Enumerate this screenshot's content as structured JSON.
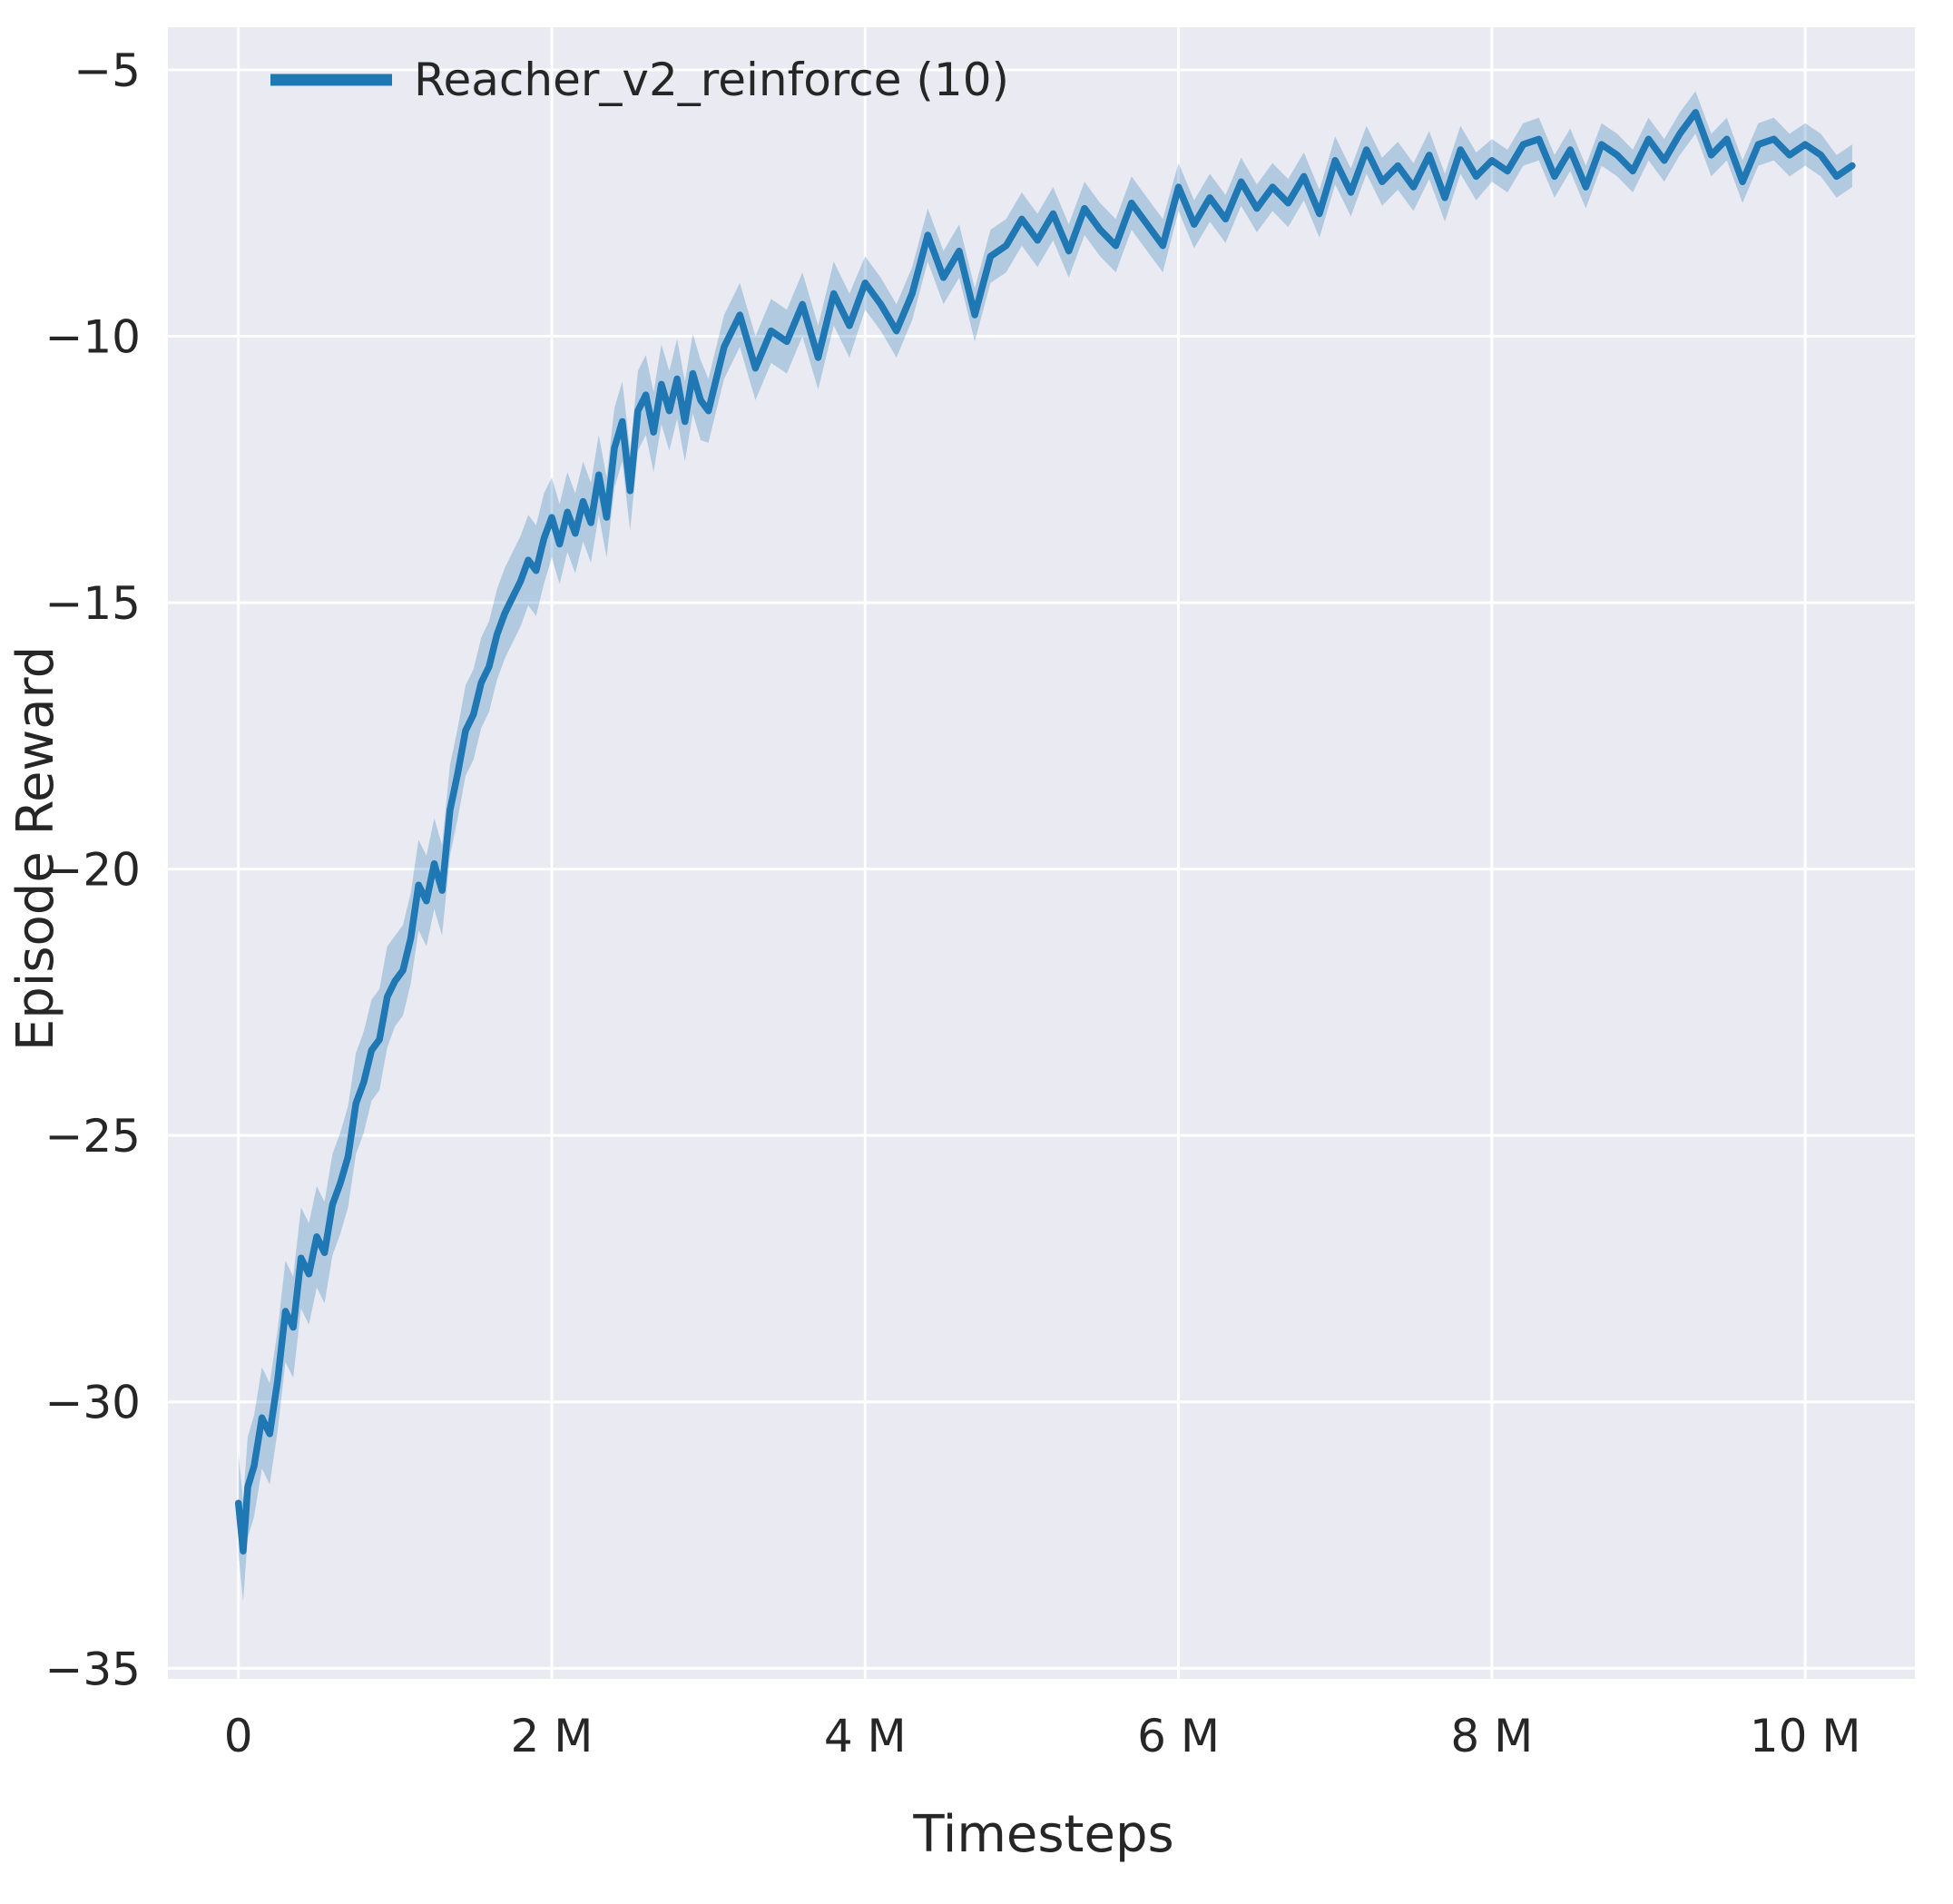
{
  "chart_data": {
    "type": "line",
    "title": "",
    "xlabel": "Timesteps",
    "ylabel": "Episode Reward",
    "xlim": [
      -0.45,
      10.7
    ],
    "ylim": [
      -35.2,
      -4.2
    ],
    "grid": true,
    "legend_position": "upper left",
    "xticks": {
      "values": [
        0,
        2,
        4,
        6,
        8,
        10
      ],
      "labels": [
        "0",
        "2 M",
        "4 M",
        "6 M",
        "8 M",
        "10 M"
      ]
    },
    "yticks": {
      "values": [
        -5,
        -10,
        -15,
        -20,
        -25,
        -30,
        -35
      ],
      "labels": [
        "−5",
        "−10",
        "−15",
        "−20",
        "−25",
        "−30",
        "−35"
      ]
    },
    "colors": {
      "line": "#1f77b4",
      "band": "#1f77b4",
      "plot_background": "#eaeaf2",
      "grid": "#ffffff",
      "text": "#262626"
    },
    "band_halfwidth_steps": [
      [
        1,
        0.95
      ],
      [
        2,
        0.85
      ],
      [
        3,
        0.75
      ],
      [
        4,
        0.6
      ],
      [
        6,
        0.5
      ],
      [
        8,
        0.45
      ],
      [
        99,
        0.4
      ]
    ],
    "series": [
      {
        "name": "Reacher_v2_reinforce (10)",
        "x": [
          0,
          0.03,
          0.06,
          0.1,
          0.15,
          0.2,
          0.25,
          0.3,
          0.35,
          0.4,
          0.45,
          0.5,
          0.55,
          0.6,
          0.65,
          0.7,
          0.75,
          0.8,
          0.85,
          0.9,
          0.95,
          1.0,
          1.05,
          1.1,
          1.15,
          1.2,
          1.25,
          1.3,
          1.35,
          1.4,
          1.45,
          1.5,
          1.55,
          1.6,
          1.65,
          1.7,
          1.75,
          1.8,
          1.85,
          1.9,
          1.95,
          2.0,
          2.05,
          2.1,
          2.15,
          2.2,
          2.25,
          2.3,
          2.35,
          2.4,
          2.45,
          2.5,
          2.55,
          2.6,
          2.65,
          2.7,
          2.75,
          2.8,
          2.85,
          2.9,
          2.95,
          3.0,
          3.1,
          3.2,
          3.3,
          3.4,
          3.5,
          3.6,
          3.7,
          3.8,
          3.9,
          4.0,
          4.1,
          4.2,
          4.3,
          4.4,
          4.5,
          4.6,
          4.7,
          4.8,
          4.9,
          5.0,
          5.1,
          5.2,
          5.3,
          5.4,
          5.5,
          5.6,
          5.7,
          5.8,
          5.9,
          6.0,
          6.1,
          6.2,
          6.3,
          6.4,
          6.5,
          6.6,
          6.7,
          6.8,
          6.9,
          7.0,
          7.1,
          7.2,
          7.3,
          7.4,
          7.5,
          7.6,
          7.7,
          7.8,
          7.9,
          8.0,
          8.1,
          8.2,
          8.3,
          8.4,
          8.5,
          8.6,
          8.7,
          8.8,
          8.9,
          9.0,
          9.1,
          9.2,
          9.3,
          9.4,
          9.5,
          9.6,
          9.7,
          9.8,
          9.9,
          10.0,
          10.1,
          10.2,
          10.3
        ],
        "y": [
          -31.9,
          -32.8,
          -31.6,
          -31.2,
          -30.3,
          -30.6,
          -29.6,
          -28.3,
          -28.6,
          -27.3,
          -27.6,
          -26.9,
          -27.2,
          -26.3,
          -25.9,
          -25.4,
          -24.4,
          -24.0,
          -23.4,
          -23.2,
          -22.4,
          -22.1,
          -21.9,
          -21.3,
          -20.3,
          -20.6,
          -19.9,
          -20.4,
          -18.9,
          -18.2,
          -17.4,
          -17.1,
          -16.5,
          -16.2,
          -15.6,
          -15.2,
          -14.9,
          -14.6,
          -14.2,
          -14.4,
          -13.8,
          -13.4,
          -13.9,
          -13.3,
          -13.7,
          -13.1,
          -13.5,
          -12.6,
          -13.4,
          -12.1,
          -11.6,
          -12.9,
          -11.4,
          -11.1,
          -11.8,
          -10.9,
          -11.4,
          -10.8,
          -11.6,
          -10.7,
          -11.2,
          -11.4,
          -10.2,
          -9.6,
          -10.6,
          -9.9,
          -10.1,
          -9.4,
          -10.4,
          -9.2,
          -9.8,
          -9.0,
          -9.4,
          -9.9,
          -9.2,
          -8.1,
          -8.9,
          -8.4,
          -9.6,
          -8.5,
          -8.3,
          -7.8,
          -8.2,
          -7.7,
          -8.4,
          -7.6,
          -8.0,
          -8.3,
          -7.5,
          -7.9,
          -8.3,
          -7.2,
          -7.9,
          -7.4,
          -7.8,
          -7.1,
          -7.6,
          -7.2,
          -7.5,
          -7.0,
          -7.7,
          -6.7,
          -7.3,
          -6.5,
          -7.1,
          -6.8,
          -7.2,
          -6.6,
          -7.4,
          -6.5,
          -7.0,
          -6.7,
          -6.9,
          -6.4,
          -6.3,
          -7.0,
          -6.5,
          -7.2,
          -6.4,
          -6.6,
          -6.9,
          -6.3,
          -6.7,
          -6.2,
          -5.8,
          -6.6,
          -6.3,
          -7.1,
          -6.4,
          -6.3,
          -6.6,
          -6.4,
          -6.6,
          -7.0,
          -6.8
        ]
      }
    ]
  }
}
